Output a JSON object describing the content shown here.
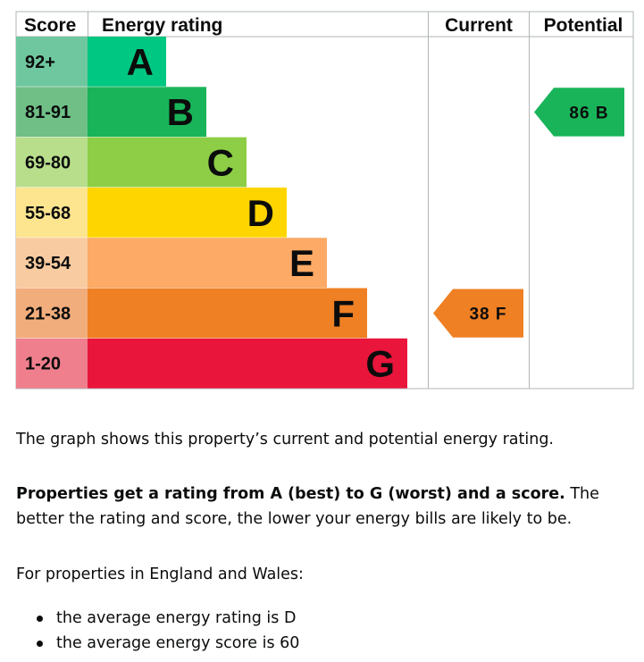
{
  "chart_data": {
    "type": "table",
    "columns": {
      "score": "Score",
      "rating": "Energy rating",
      "current": "Current",
      "potential": "Potential"
    },
    "bands": [
      {
        "letter": "A",
        "range": "92+",
        "score_color": "#6fc7a0",
        "bar_color": "#00c781",
        "width_rank": 1
      },
      {
        "letter": "B",
        "range": "81-91",
        "score_color": "#6fbf86",
        "bar_color": "#19b459",
        "width_rank": 2
      },
      {
        "letter": "C",
        "range": "69-80",
        "score_color": "#b8de8c",
        "bar_color": "#8dce46",
        "width_rank": 3
      },
      {
        "letter": "D",
        "range": "55-68",
        "score_color": "#fde48f",
        "bar_color": "#ffd500",
        "width_rank": 4
      },
      {
        "letter": "E",
        "range": "39-54",
        "score_color": "#f9cba0",
        "bar_color": "#fcaa65",
        "width_rank": 5
      },
      {
        "letter": "F",
        "range": "21-38",
        "score_color": "#f2ad7c",
        "bar_color": "#ef8023",
        "width_rank": 6
      },
      {
        "letter": "G",
        "range": "1-20",
        "score_color": "#ef7f8c",
        "bar_color": "#e9153b",
        "width_rank": 7
      }
    ],
    "current": {
      "score": 38,
      "band": "F",
      "label": "38 F",
      "color": "#ef8023"
    },
    "potential": {
      "score": 86,
      "band": "B",
      "label": "86 B",
      "color": "#19b459"
    }
  },
  "text": {
    "p1": "The graph shows this property’s current and potential energy rating.",
    "p2_bold": "Properties get a rating from A (best) to G (worst) and a score.",
    "p2_rest": " The better the rating and score, the lower your energy bills are likely to be.",
    "p3": "For properties in England and Wales:",
    "bullets": [
      "the average energy rating is D",
      "the average energy score is 60"
    ]
  }
}
